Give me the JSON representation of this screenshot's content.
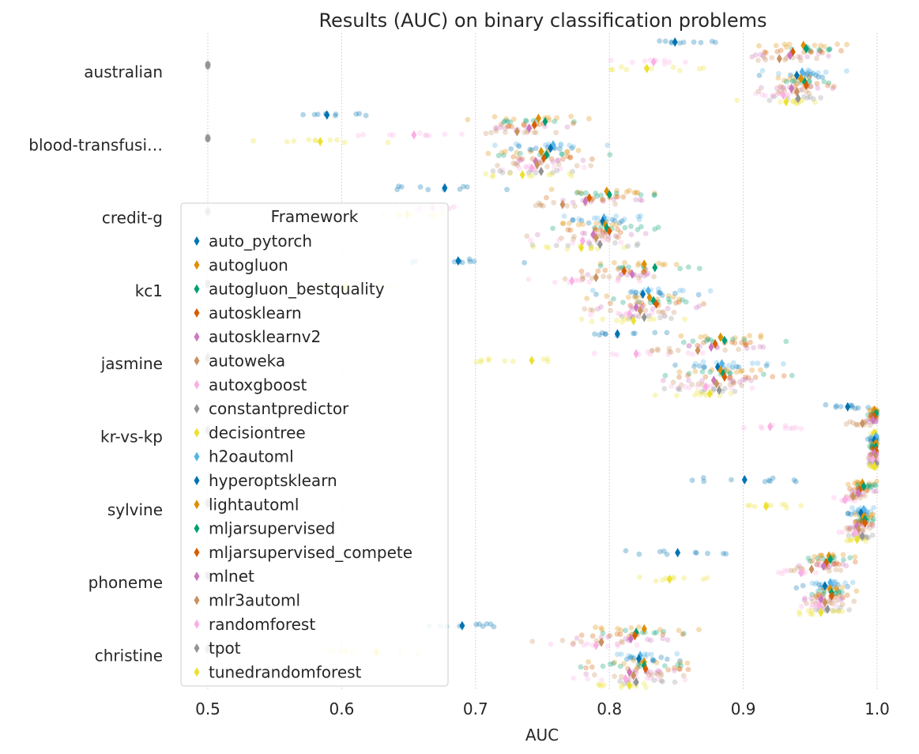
{
  "chart_data": {
    "type": "scatter",
    "title": "Results (AUC) on  binary classification problems",
    "xlabel": "AUC",
    "ylabel": "",
    "xlim": [
      0.475,
      1.0
    ],
    "x_ticks": [
      "0.5",
      "0.6",
      "0.7",
      "0.8",
      "0.9",
      "1.0"
    ],
    "x_tick_values": [
      0.5,
      0.6,
      0.7,
      0.8,
      0.9,
      1.0
    ],
    "grid": "vertical dotted",
    "legend_position": "left",
    "legend_title": "Framework",
    "categories": [
      "australian",
      "blood-transfusi…",
      "credit-g",
      "kc1",
      "jasmine",
      "kr-vs-kp",
      "sylvine",
      "phoneme",
      "christine"
    ],
    "series": [
      {
        "name": "auto_pytorch",
        "color": "#0173b2",
        "values": [
          0.849,
          0.589,
          0.677,
          0.687,
          0.806,
          0.978,
          0.901,
          0.851,
          0.69
        ]
      },
      {
        "name": "autogluon",
        "color": "#de8f05",
        "values": [
          0.945,
          0.747,
          0.798,
          0.826,
          0.883,
          0.998,
          0.989,
          0.964,
          0.826
        ]
      },
      {
        "name": "autogluon_bestquality",
        "color": "#029e73",
        "values": [
          0.947,
          0.752,
          0.8,
          0.834,
          0.886,
          0.999,
          0.99,
          0.965,
          0.82
        ]
      },
      {
        "name": "autosklearn",
        "color": "#d55e00",
        "values": [
          0.937,
          0.744,
          0.785,
          0.811,
          0.879,
          0.998,
          0.987,
          0.962,
          0.819
        ]
      },
      {
        "name": "autosklearnv2",
        "color": "#cc78bc",
        "values": [
          0.935,
          0.74,
          0.782,
          0.817,
          0.876,
          0.997,
          0.986,
          0.96,
          0.816
        ]
      },
      {
        "name": "autoweka",
        "color": "#ca9161",
        "values": [
          0.927,
          0.731,
          0.765,
          0.79,
          0.866,
          0.989,
          0.982,
          0.951,
          0.794
        ]
      },
      {
        "name": "autoxgboost",
        "color": "#fbafe4",
        "values": [
          0.833,
          0.654,
          0.668,
          0.772,
          0.82,
          0.92,
          0.976,
          0.943,
          0.79
        ]
      },
      {
        "name": "constantpredictor",
        "color": "#949494",
        "values": [
          0.5,
          0.5,
          0.5,
          0.5,
          0.5,
          0.5,
          0.5,
          0.5,
          0.5
        ]
      },
      {
        "name": "decisiontree",
        "color": "#ece133",
        "values": [
          0.828,
          0.584,
          0.649,
          0.603,
          0.742,
          0.998,
          0.917,
          0.845,
          0.626
        ]
      },
      {
        "name": "h2oautoml",
        "color": "#56b4e9",
        "values": [
          0.944,
          0.758,
          0.796,
          0.829,
          0.884,
          0.999,
          0.99,
          0.965,
          0.823
        ]
      },
      {
        "name": "hyperoptsklearn",
        "color": "#0173b2",
        "values": [
          0.94,
          0.756,
          0.795,
          0.825,
          0.881,
          0.998,
          0.988,
          0.961,
          0.822
        ]
      },
      {
        "name": "lightautoml",
        "color": "#de8f05",
        "values": [
          0.943,
          0.749,
          0.797,
          0.83,
          0.883,
          0.999,
          0.99,
          0.965,
          0.826
        ]
      },
      {
        "name": "mljarsupervised",
        "color": "#029e73",
        "values": [
          0.946,
          0.753,
          0.798,
          0.833,
          0.885,
          0.999,
          0.991,
          0.966,
          0.826
        ]
      },
      {
        "name": "mljarsupervised_compete",
        "color": "#d55e00",
        "values": [
          0.947,
          0.751,
          0.8,
          0.835,
          0.886,
          0.999,
          0.991,
          0.966,
          0.827
        ]
      },
      {
        "name": "mlnet",
        "color": "#cc78bc",
        "values": [
          0.936,
          0.745,
          0.788,
          0.82,
          0.878,
          0.998,
          0.985,
          0.958,
          0.815
        ]
      },
      {
        "name": "mlr3automl",
        "color": "#ca9161",
        "values": [
          0.94,
          0.746,
          0.79,
          0.823,
          0.88,
          0.998,
          0.986,
          0.961,
          0.818
        ]
      },
      {
        "name": "randomforest",
        "color": "#fbafe4",
        "values": [
          0.93,
          0.742,
          0.78,
          0.815,
          0.872,
          0.997,
          0.984,
          0.957,
          0.812
        ]
      },
      {
        "name": "tpot",
        "color": "#949494",
        "values": [
          0.941,
          0.749,
          0.793,
          0.826,
          0.882,
          0.999,
          0.989,
          0.963,
          0.82
        ]
      },
      {
        "name": "tunedrandomforest",
        "color": "#ece133",
        "values": [
          0.932,
          0.735,
          0.779,
          0.818,
          0.875,
          0.998,
          0.985,
          0.958,
          0.815
        ]
      }
    ]
  }
}
